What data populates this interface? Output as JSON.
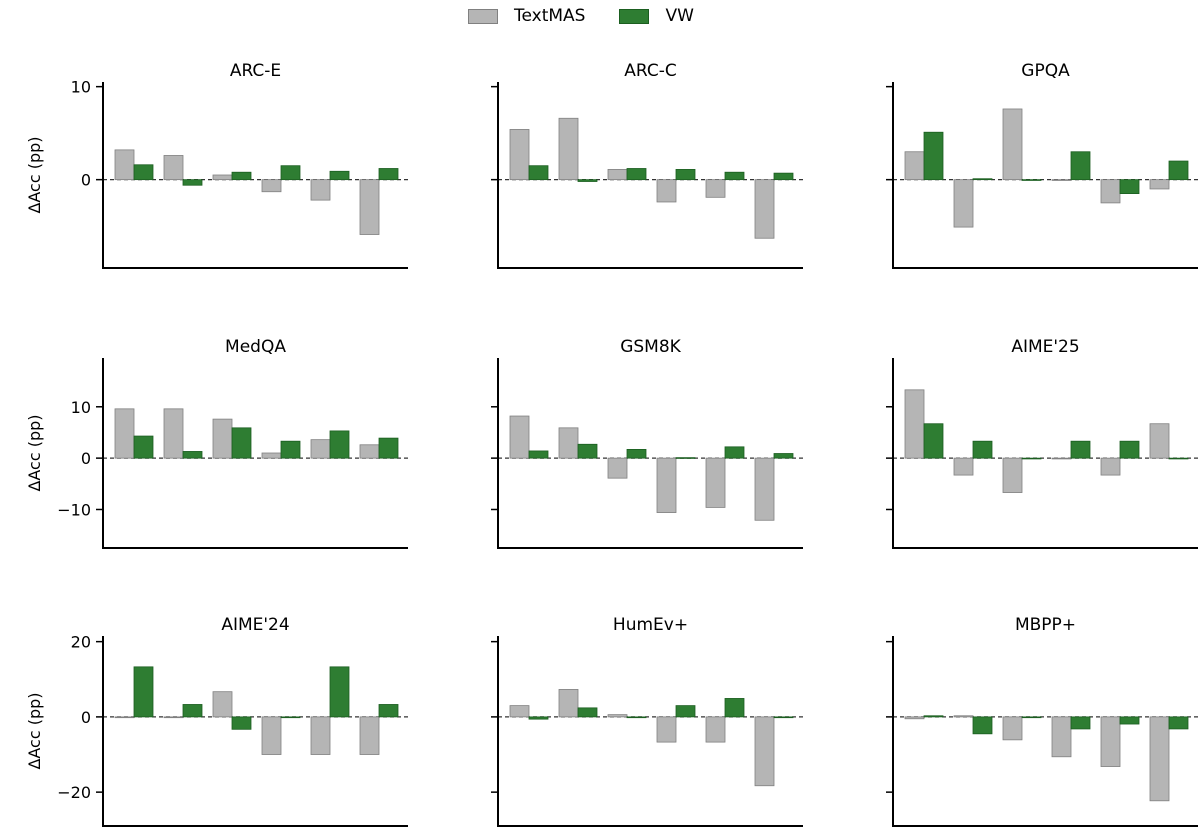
{
  "legend": [
    {
      "label": "TextMAS",
      "color": "#b5b5b5"
    },
    {
      "label": "VW",
      "color": "#2e7d32"
    }
  ],
  "colors": {
    "textmas": "#b5b5b5",
    "textmas_edge": "#808080",
    "vw": "#2e7d32",
    "vw_edge": "#1b5e20"
  },
  "chart_data": [
    {
      "type": "bar",
      "title": "ARC-E",
      "ylabel": "ΔAcc (pp)",
      "ylim": [
        -9.5,
        10.5
      ],
      "yticks": [
        0,
        10
      ],
      "series": [
        {
          "name": "TextMAS",
          "values": [
            3.2,
            2.6,
            0.5,
            -1.3,
            -2.2,
            -5.9
          ]
        },
        {
          "name": "VW",
          "values": [
            1.6,
            -0.6,
            0.8,
            1.5,
            0.9,
            1.2
          ]
        }
      ]
    },
    {
      "type": "bar",
      "title": "ARC-C",
      "ylabel": "",
      "ylim": [
        -9.5,
        10.5
      ],
      "yticks": [
        0,
        10
      ],
      "series": [
        {
          "name": "TextMAS",
          "values": [
            5.4,
            6.6,
            1.1,
            -2.4,
            -1.9,
            -6.3
          ]
        },
        {
          "name": "VW",
          "values": [
            1.5,
            -0.2,
            1.2,
            1.1,
            0.8,
            0.7
          ]
        }
      ]
    },
    {
      "type": "bar",
      "title": "GPQA",
      "ylabel": "",
      "ylim": [
        -9.5,
        10.5
      ],
      "yticks": [
        0,
        10
      ],
      "series": [
        {
          "name": "TextMAS",
          "values": [
            3.0,
            -5.1,
            7.6,
            0.0,
            -2.5,
            -1.0
          ]
        },
        {
          "name": "VW",
          "values": [
            5.1,
            0.1,
            0.0,
            3.0,
            -1.5,
            2.0
          ]
        }
      ]
    },
    {
      "type": "bar",
      "title": "MedQA",
      "ylabel": "ΔAcc (pp)",
      "ylim": [
        -17.5,
        19.5
      ],
      "yticks": [
        -10,
        0,
        10
      ],
      "series": [
        {
          "name": "TextMAS",
          "values": [
            9.6,
            9.6,
            7.6,
            1.0,
            3.6,
            2.6
          ]
        },
        {
          "name": "VW",
          "values": [
            4.3,
            1.3,
            5.9,
            3.3,
            5.3,
            3.9
          ]
        }
      ]
    },
    {
      "type": "bar",
      "title": "GSM8K",
      "ylabel": "",
      "ylim": [
        -17.5,
        19.5
      ],
      "yticks": [
        -10,
        0,
        10
      ],
      "series": [
        {
          "name": "TextMAS",
          "values": [
            8.2,
            5.9,
            -3.9,
            -10.6,
            -9.6,
            -12.1
          ]
        },
        {
          "name": "VW",
          "values": [
            1.4,
            2.7,
            1.7,
            0.1,
            2.2,
            0.9
          ]
        }
      ]
    },
    {
      "type": "bar",
      "title": "AIME'25",
      "ylabel": "",
      "ylim": [
        -17.5,
        19.5
      ],
      "yticks": [
        -10,
        0,
        10
      ],
      "series": [
        {
          "name": "TextMAS",
          "values": [
            13.3,
            -3.3,
            -6.7,
            0.0,
            -3.3,
            6.7
          ]
        },
        {
          "name": "VW",
          "values": [
            6.7,
            3.3,
            0.0,
            3.3,
            3.3,
            0.0
          ]
        }
      ]
    },
    {
      "type": "bar",
      "title": "AIME'24",
      "ylabel": "ΔAcc (pp)",
      "ylim": [
        -29,
        21.5
      ],
      "yticks": [
        -20,
        0,
        20
      ],
      "series": [
        {
          "name": "TextMAS",
          "values": [
            0.0,
            0.0,
            6.7,
            -10.0,
            -10.0,
            -10.0
          ]
        },
        {
          "name": "VW",
          "values": [
            13.3,
            3.3,
            -3.3,
            0.0,
            13.3,
            3.3
          ]
        }
      ]
    },
    {
      "type": "bar",
      "title": "HumEv+",
      "ylabel": "",
      "ylim": [
        -29,
        21.5
      ],
      "yticks": [
        -20,
        0,
        20
      ],
      "series": [
        {
          "name": "TextMAS",
          "values": [
            3.0,
            7.3,
            0.6,
            -6.7,
            -6.7,
            -18.3
          ]
        },
        {
          "name": "VW",
          "values": [
            -0.6,
            2.4,
            0.0,
            3.0,
            4.9,
            0.0
          ]
        }
      ]
    },
    {
      "type": "bar",
      "title": "MBPP+",
      "ylabel": "",
      "ylim": [
        -29,
        21.5
      ],
      "yticks": [
        -20,
        0,
        20
      ],
      "series": [
        {
          "name": "TextMAS",
          "values": [
            -0.5,
            0.3,
            -6.1,
            -10.6,
            -13.2,
            -22.3
          ]
        },
        {
          "name": "VW",
          "values": [
            0.3,
            -4.5,
            0.0,
            -3.2,
            -1.9,
            -3.2
          ]
        }
      ]
    }
  ]
}
